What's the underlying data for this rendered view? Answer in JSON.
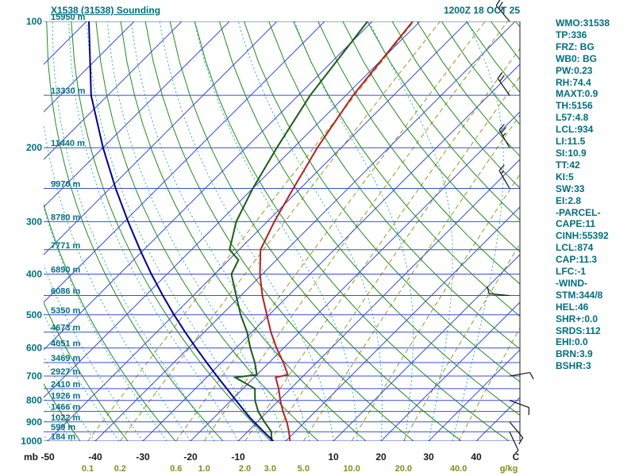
{
  "header": {
    "title": "X1538 (31538) Sounding",
    "datetime": "1200Z 18 OCT 25"
  },
  "stats": {
    "lines": [
      "WMO:31538",
      "TP:336",
      "FRZ: BG",
      "WB0: BG",
      "PW:0.23",
      "RH:74.4",
      "MAXT:0.9",
      "TH:5156",
      "L57:4.8",
      "LCL:934",
      "LI:11.5",
      "SI:10.9",
      "TT:42",
      "KI:5",
      "SW:33",
      "EI:2.8",
      "-PARCEL-",
      "CAPE:11",
      "CINH:55392",
      "LCL:874",
      "CAP:11.3",
      "LFC:-1",
      "-WIND-",
      "STM:344/8",
      "HEL:46",
      "SHR+:0.0",
      "SRDS:112",
      "EHI:0.0",
      "BRN:3.9",
      "BSHR:3"
    ]
  },
  "chart_data": {
    "type": "line",
    "subtype": "skewt-log-p-sounding",
    "pressure_axis": {
      "label": "mb",
      "ticks": [
        100,
        200,
        300,
        400,
        500,
        600,
        700,
        800,
        900,
        1000
      ],
      "range": [
        100,
        1000
      ],
      "scale": "log"
    },
    "temp_axis": {
      "label": "C",
      "ticks": [
        -50,
        -40,
        -30,
        -20,
        -10,
        10,
        20,
        30,
        40
      ]
    },
    "mixing_ratio_axis": {
      "label": "g/kg",
      "ticks": [
        "0.1",
        "0.2",
        "0.6",
        "1.0",
        "2.0",
        "3.0",
        "5.0",
        "10.0",
        "20.0",
        "40.0"
      ]
    },
    "height_labels": [
      [
        100,
        "15950 m"
      ],
      [
        150,
        "13330 m"
      ],
      [
        200,
        "11440 m"
      ],
      [
        250,
        "9970 m"
      ],
      [
        300,
        "8780 m"
      ],
      [
        350,
        "7771 m"
      ],
      [
        400,
        "6890 m"
      ],
      [
        450,
        "6086 m"
      ],
      [
        500,
        "5350 m"
      ],
      [
        550,
        "4673 m"
      ],
      [
        600,
        "4051 m"
      ],
      [
        650,
        "3469 m"
      ],
      [
        700,
        "2927 m"
      ],
      [
        750,
        "2410 m"
      ],
      [
        800,
        "1926 m"
      ],
      [
        850,
        "1466 m"
      ],
      [
        900,
        "1022 m"
      ],
      [
        950,
        "599 m"
      ],
      [
        1000,
        "184 m"
      ]
    ],
    "series": [
      {
        "name": "temperature",
        "points": [
          [
            1000,
            0.9
          ],
          [
            950,
            -1.3
          ],
          [
            900,
            -3.8
          ],
          [
            850,
            -6.8
          ],
          [
            800,
            -9.7
          ],
          [
            750,
            -12.5
          ],
          [
            705,
            -15.5
          ],
          [
            695,
            -13.5
          ],
          [
            650,
            -17.0
          ],
          [
            600,
            -21.5
          ],
          [
            550,
            -26.0
          ],
          [
            500,
            -30.5
          ],
          [
            450,
            -35.5
          ],
          [
            400,
            -40.5
          ],
          [
            350,
            -45.5
          ],
          [
            300,
            -48.5
          ],
          [
            250,
            -51.5
          ],
          [
            200,
            -55.0
          ],
          [
            150,
            -58.5
          ],
          [
            100,
            -61.5
          ]
        ]
      },
      {
        "name": "dewpoint",
        "points": [
          [
            1000,
            -3.0
          ],
          [
            950,
            -5.0
          ],
          [
            900,
            -8.5
          ],
          [
            850,
            -12.0
          ],
          [
            800,
            -15.0
          ],
          [
            750,
            -17.5
          ],
          [
            705,
            -24.0
          ],
          [
            695,
            -20.0
          ],
          [
            650,
            -23.0
          ],
          [
            600,
            -27.0
          ],
          [
            550,
            -31.0
          ],
          [
            500,
            -36.0
          ],
          [
            450,
            -41.0
          ],
          [
            400,
            -46.5
          ],
          [
            370,
            -48.0
          ],
          [
            350,
            -52.0
          ],
          [
            300,
            -56.5
          ],
          [
            250,
            -60.0
          ],
          [
            200,
            -63.5
          ],
          [
            150,
            -67.5
          ],
          [
            100,
            -71.0
          ]
        ]
      },
      {
        "name": "parcel",
        "points": [
          [
            1000,
            -2.6
          ],
          [
            950,
            -6.6
          ],
          [
            900,
            -10.7
          ],
          [
            874,
            -12.9
          ],
          [
            850,
            -14.8
          ],
          [
            800,
            -19.0
          ],
          [
            750,
            -23.4
          ],
          [
            700,
            -28.1
          ],
          [
            650,
            -33.1
          ],
          [
            600,
            -38.4
          ],
          [
            550,
            -44.0
          ],
          [
            500,
            -50.0
          ],
          [
            450,
            -56.4
          ],
          [
            400,
            -63.3
          ],
          [
            350,
            -70.8
          ],
          [
            300,
            -79.2
          ],
          [
            250,
            -88.8
          ],
          [
            200,
            -100.0
          ],
          [
            150,
            -113.5
          ],
          [
            100,
            -129.5
          ]
        ]
      }
    ],
    "winds": [
      {
        "p": 100,
        "dir": 320,
        "spd": 25
      },
      {
        "p": 150,
        "dir": 325,
        "spd": 20
      },
      {
        "p": 200,
        "dir": 330,
        "spd": 25
      },
      {
        "p": 250,
        "dir": 330,
        "spd": 15
      },
      {
        "p": 450,
        "dir": 275,
        "spd": 10
      },
      {
        "p": 700,
        "dir": 80,
        "spd": 10
      },
      {
        "p": 800,
        "dir": 110,
        "spd": 10
      },
      {
        "p": 900,
        "dir": 140,
        "spd": 10
      },
      {
        "p": 950,
        "dir": 155,
        "spd": 5
      }
    ],
    "background": {
      "isobar_step": 50,
      "isotherm_min": -130,
      "isotherm_max": 40,
      "isotherm_step": 10,
      "dry_adiabat_theta_min": 220,
      "dry_adiabat_theta_max": 450,
      "dry_adiabat_theta_step": 10,
      "moist_adiabat_start_temps": [
        -60,
        -55,
        -50,
        -45,
        -40,
        -35,
        -30,
        -25,
        -20,
        -15,
        -10,
        -5,
        0,
        5,
        10,
        15,
        20,
        25,
        30,
        35
      ]
    },
    "colors": {
      "isobar": "#3a4fd0",
      "isotherm": "#3a4fd0",
      "dry_adiabat": "#1e8c1e",
      "moist_adiabat": "#30b0b0",
      "mixing_ratio": "#9a9a20",
      "temperature": "#b22222",
      "dewpoint": "#1a5c1a",
      "parcel": "#00008b",
      "barb": "#111111",
      "frame": "#222222",
      "label_teal": "#007080",
      "label_dark": "#1a1a1a",
      "label_olive": "#8a8a1a"
    }
  }
}
